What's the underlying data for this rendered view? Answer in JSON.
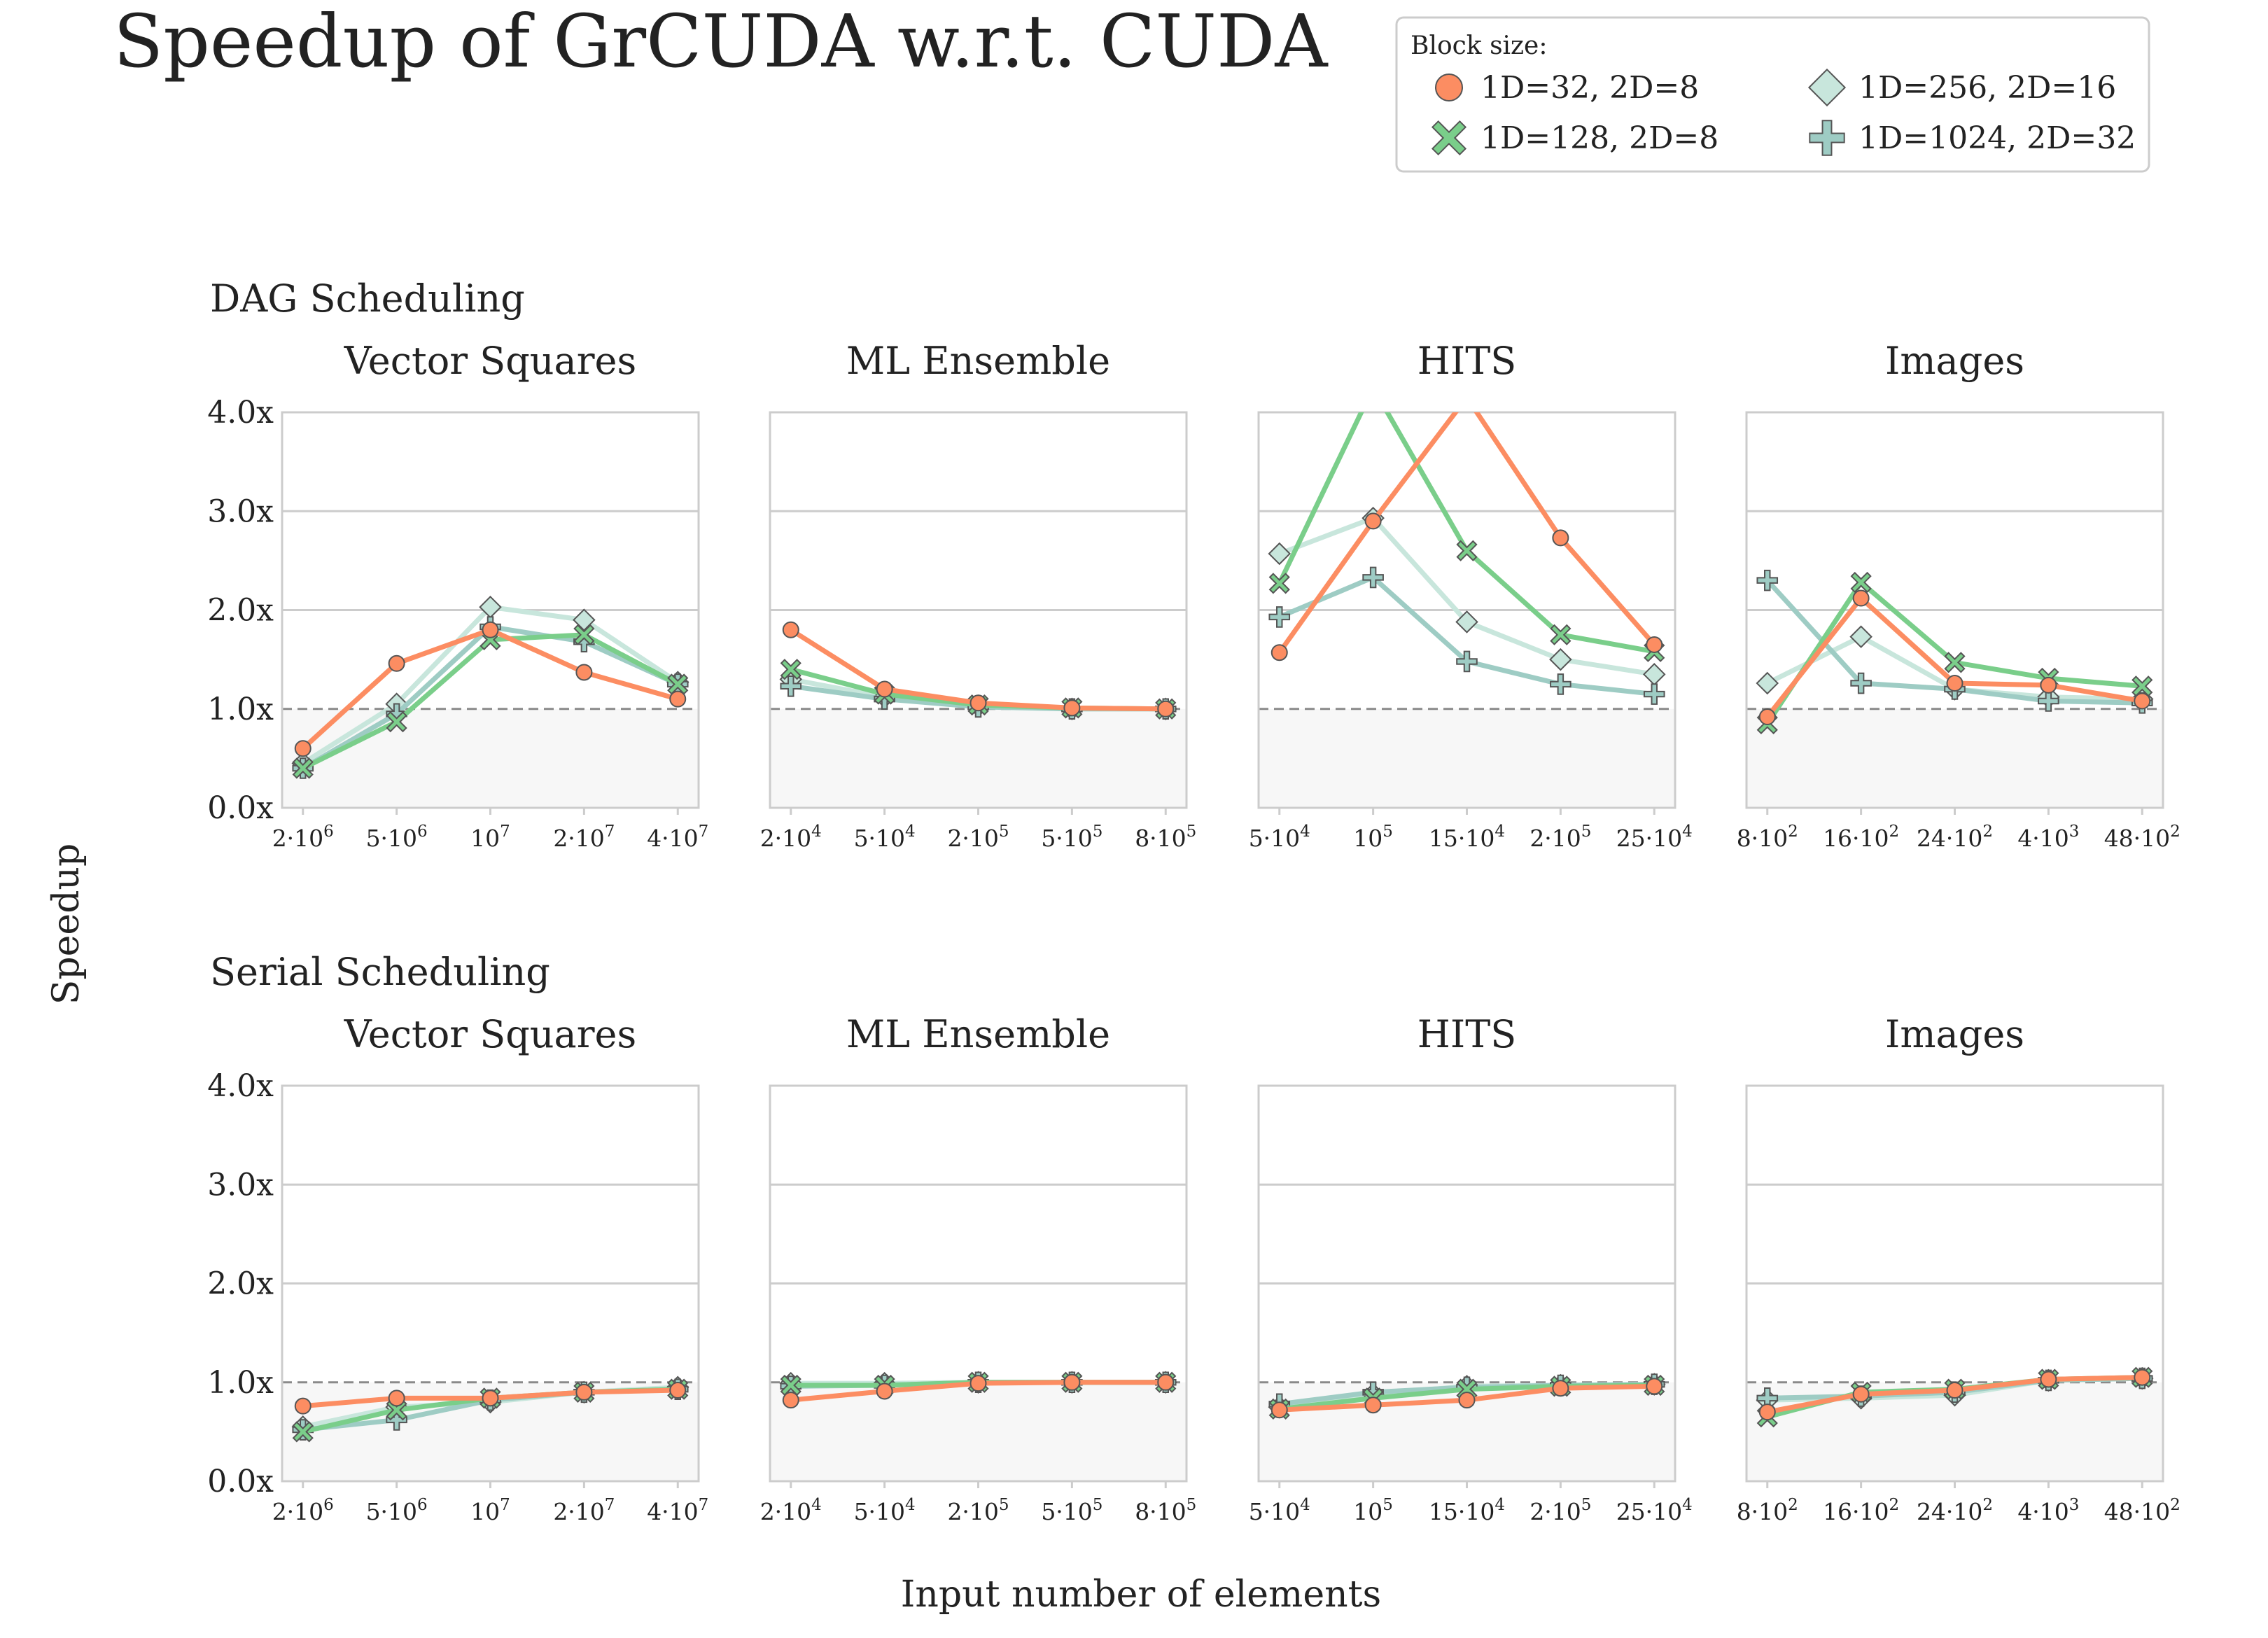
{
  "title": "Speedup of GrCUDA w.r.t. CUDA",
  "ylabel": "Speedup",
  "xlabel": "Input number of elements",
  "legend": {
    "title": "Block size:",
    "placement": "top-right",
    "entries": [
      {
        "label": "1D=32, 2D=8",
        "marker": "circle",
        "color": "#FC8D62"
      },
      {
        "label": "1D=256, 2D=16",
        "marker": "diamond",
        "color": "#C8E6DC"
      },
      {
        "label": "1D=128, 2D=8",
        "marker": "x",
        "color": "#7ACE8A"
      },
      {
        "label": "1D=1024, 2D=32",
        "marker": "plus",
        "color": "#9ECCC4"
      }
    ]
  },
  "rows": [
    {
      "title": "DAG Scheduling"
    },
    {
      "title": "Serial Scheduling"
    }
  ],
  "chart_data": [
    {
      "type": "line",
      "row": 0,
      "title": "Vector Squares",
      "categories": [
        {
          "base": "2·10",
          "exp": "6"
        },
        {
          "base": "5·10",
          "exp": "6"
        },
        {
          "base": "10",
          "exp": "7"
        },
        {
          "base": "2·10",
          "exp": "7"
        },
        {
          "base": "4·10",
          "exp": "7"
        }
      ],
      "ylim": [
        0,
        4
      ],
      "yticks": [
        "0.0x",
        "1.0x",
        "2.0x",
        "3.0x",
        "4.0x"
      ],
      "grid": true,
      "reference_line": 1.0,
      "series": [
        {
          "name": "1D=32, 2D=8",
          "values": [
            0.6,
            1.46,
            1.8,
            1.37,
            1.1
          ]
        },
        {
          "name": "1D=128, 2D=8",
          "values": [
            0.4,
            0.87,
            1.7,
            1.75,
            1.25
          ]
        },
        {
          "name": "1D=256, 2D=16",
          "values": [
            0.45,
            1.05,
            2.03,
            1.9,
            1.27
          ]
        },
        {
          "name": "1D=1024, 2D=32",
          "values": [
            0.4,
            0.95,
            1.83,
            1.68,
            1.25
          ]
        }
      ]
    },
    {
      "type": "line",
      "row": 0,
      "title": "ML Ensemble",
      "categories": [
        {
          "base": "2·10",
          "exp": "4"
        },
        {
          "base": "5·10",
          "exp": "4"
        },
        {
          "base": "2·10",
          "exp": "5"
        },
        {
          "base": "5·10",
          "exp": "5"
        },
        {
          "base": "8·10",
          "exp": "5"
        }
      ],
      "ylim": [
        0,
        4
      ],
      "yticks": [
        "0.0x",
        "1.0x",
        "2.0x",
        "3.0x",
        "4.0x"
      ],
      "grid": true,
      "reference_line": 1.0,
      "series": [
        {
          "name": "1D=32, 2D=8",
          "values": [
            1.8,
            1.2,
            1.06,
            1.01,
            1.0
          ]
        },
        {
          "name": "1D=128, 2D=8",
          "values": [
            1.4,
            1.15,
            1.04,
            1.01,
            1.0
          ]
        },
        {
          "name": "1D=256, 2D=16",
          "values": [
            1.3,
            1.12,
            1.03,
            1.0,
            1.0
          ]
        },
        {
          "name": "1D=1024, 2D=32",
          "values": [
            1.23,
            1.1,
            1.02,
            1.0,
            1.0
          ]
        }
      ]
    },
    {
      "type": "line",
      "row": 0,
      "title": "HITS",
      "categories": [
        {
          "base": "5·10",
          "exp": "4"
        },
        {
          "base": "10",
          "exp": "5"
        },
        {
          "base": "15·10",
          "exp": "4"
        },
        {
          "base": "2·10",
          "exp": "5"
        },
        {
          "base": "25·10",
          "exp": "4"
        }
      ],
      "ylim": [
        0,
        4
      ],
      "yticks": [
        "0.0x",
        "1.0x",
        "2.0x",
        "3.0x",
        "4.0x"
      ],
      "grid": true,
      "reference_line": 1.0,
      "series": [
        {
          "name": "1D=32, 2D=8",
          "values": [
            1.57,
            2.9,
            4.15,
            2.73,
            1.65
          ]
        },
        {
          "name": "1D=128, 2D=8",
          "values": [
            2.27,
            4.25,
            2.6,
            1.75,
            1.58
          ]
        },
        {
          "name": "1D=256, 2D=16",
          "values": [
            2.57,
            2.93,
            1.88,
            1.5,
            1.35
          ]
        },
        {
          "name": "1D=1024, 2D=32",
          "values": [
            1.93,
            2.33,
            1.48,
            1.25,
            1.15
          ]
        }
      ]
    },
    {
      "type": "line",
      "row": 0,
      "title": "Images",
      "categories": [
        {
          "base": "8·10",
          "exp": "2"
        },
        {
          "base": "16·10",
          "exp": "2"
        },
        {
          "base": "24·10",
          "exp": "2"
        },
        {
          "base": "4·10",
          "exp": "3"
        },
        {
          "base": "48·10",
          "exp": "2"
        }
      ],
      "ylim": [
        0,
        4
      ],
      "yticks": [
        "0.0x",
        "1.0x",
        "2.0x",
        "3.0x",
        "4.0x"
      ],
      "grid": true,
      "reference_line": 1.0,
      "series": [
        {
          "name": "1D=32, 2D=8",
          "values": [
            0.92,
            2.12,
            1.26,
            1.24,
            1.08
          ]
        },
        {
          "name": "1D=128, 2D=8",
          "values": [
            0.85,
            2.28,
            1.47,
            1.31,
            1.23
          ]
        },
        {
          "name": "1D=256, 2D=16",
          "values": [
            1.26,
            1.73,
            1.2,
            1.12,
            1.1
          ]
        },
        {
          "name": "1D=1024, 2D=32",
          "values": [
            2.3,
            1.26,
            1.2,
            1.08,
            1.06
          ]
        }
      ]
    },
    {
      "type": "line",
      "row": 1,
      "title": "Vector Squares",
      "categories": [
        {
          "base": "2·10",
          "exp": "6"
        },
        {
          "base": "5·10",
          "exp": "6"
        },
        {
          "base": "10",
          "exp": "7"
        },
        {
          "base": "2·10",
          "exp": "7"
        },
        {
          "base": "4·10",
          "exp": "7"
        }
      ],
      "ylim": [
        0,
        4
      ],
      "yticks": [
        "0.0x",
        "1.0x",
        "2.0x",
        "3.0x",
        "4.0x"
      ],
      "grid": true,
      "reference_line": 1.0,
      "series": [
        {
          "name": "1D=32, 2D=8",
          "values": [
            0.76,
            0.84,
            0.84,
            0.9,
            0.92
          ]
        },
        {
          "name": "1D=128, 2D=8",
          "values": [
            0.5,
            0.72,
            0.84,
            0.9,
            0.93
          ]
        },
        {
          "name": "1D=256, 2D=16",
          "values": [
            0.55,
            0.75,
            0.8,
            0.9,
            0.95
          ]
        },
        {
          "name": "1D=1024, 2D=32",
          "values": [
            0.52,
            0.62,
            0.82,
            0.9,
            0.93
          ]
        }
      ]
    },
    {
      "type": "line",
      "row": 1,
      "title": "ML Ensemble",
      "categories": [
        {
          "base": "2·10",
          "exp": "4"
        },
        {
          "base": "5·10",
          "exp": "4"
        },
        {
          "base": "2·10",
          "exp": "5"
        },
        {
          "base": "5·10",
          "exp": "5"
        },
        {
          "base": "8·10",
          "exp": "5"
        }
      ],
      "ylim": [
        0,
        4
      ],
      "yticks": [
        "0.0x",
        "1.0x",
        "2.0x",
        "3.0x",
        "4.0x"
      ],
      "grid": true,
      "reference_line": 1.0,
      "series": [
        {
          "name": "1D=32, 2D=8",
          "values": [
            0.82,
            0.91,
            0.99,
            1.0,
            1.0
          ]
        },
        {
          "name": "1D=128, 2D=8",
          "values": [
            0.97,
            0.97,
            1.0,
            1.0,
            1.0
          ]
        },
        {
          "name": "1D=256, 2D=16",
          "values": [
            0.99,
            0.99,
            1.0,
            1.0,
            1.0
          ]
        },
        {
          "name": "1D=1024, 2D=32",
          "values": [
            0.96,
            0.97,
            1.0,
            1.0,
            1.0
          ]
        }
      ]
    },
    {
      "type": "line",
      "row": 1,
      "title": "HITS",
      "categories": [
        {
          "base": "5·10",
          "exp": "4"
        },
        {
          "base": "10",
          "exp": "5"
        },
        {
          "base": "15·10",
          "exp": "4"
        },
        {
          "base": "2·10",
          "exp": "5"
        },
        {
          "base": "25·10",
          "exp": "4"
        }
      ],
      "ylim": [
        0,
        4
      ],
      "yticks": [
        "0.0x",
        "1.0x",
        "2.0x",
        "3.0x",
        "4.0x"
      ],
      "grid": true,
      "reference_line": 1.0,
      "series": [
        {
          "name": "1D=32, 2D=8",
          "values": [
            0.72,
            0.77,
            0.82,
            0.94,
            0.96
          ]
        },
        {
          "name": "1D=128, 2D=8",
          "values": [
            0.73,
            0.84,
            0.93,
            0.96,
            0.97
          ]
        },
        {
          "name": "1D=256, 2D=16",
          "values": [
            0.75,
            0.88,
            0.96,
            0.97,
            0.98
          ]
        },
        {
          "name": "1D=1024, 2D=32",
          "values": [
            0.78,
            0.9,
            0.95,
            0.97,
            0.98
          ]
        }
      ]
    },
    {
      "type": "line",
      "row": 1,
      "title": "Images",
      "categories": [
        {
          "base": "8·10",
          "exp": "2"
        },
        {
          "base": "16·10",
          "exp": "2"
        },
        {
          "base": "24·10",
          "exp": "2"
        },
        {
          "base": "4·10",
          "exp": "3"
        },
        {
          "base": "48·10",
          "exp": "2"
        }
      ],
      "ylim": [
        0,
        4
      ],
      "yticks": [
        "0.0x",
        "1.0x",
        "2.0x",
        "3.0x",
        "4.0x"
      ],
      "grid": true,
      "reference_line": 1.0,
      "series": [
        {
          "name": "1D=32, 2D=8",
          "values": [
            0.7,
            0.88,
            0.92,
            1.03,
            1.05
          ]
        },
        {
          "name": "1D=128, 2D=8",
          "values": [
            0.65,
            0.9,
            0.93,
            1.03,
            1.05
          ]
        },
        {
          "name": "1D=256, 2D=16",
          "values": [
            0.82,
            0.84,
            0.87,
            1.02,
            1.04
          ]
        },
        {
          "name": "1D=1024, 2D=32",
          "values": [
            0.84,
            0.86,
            0.9,
            1.02,
            1.04
          ]
        }
      ]
    }
  ]
}
